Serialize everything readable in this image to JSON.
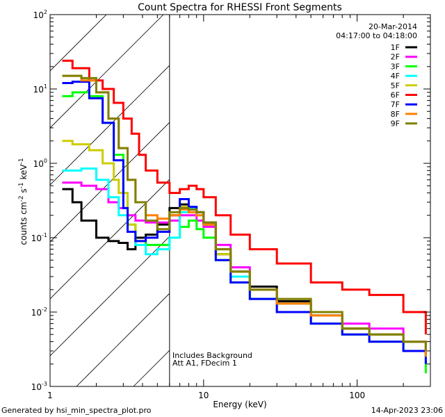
{
  "chart_data": {
    "type": "line",
    "title": "Count Spectra for RHESSI Front Segments",
    "xlabel": "Energy (keV)",
    "ylabel_parts": {
      "a": "counts cm",
      "b": "-2",
      "c": " s",
      "d": "-1",
      "e": " keV",
      "f": "-1"
    },
    "xscale": "log",
    "yscale": "log",
    "xlim": [
      1,
      300
    ],
    "ylim": [
      0.001,
      100
    ],
    "x_ticks": [
      {
        "v": 1,
        "label": "1"
      },
      {
        "v": 10,
        "label": "10"
      },
      {
        "v": 100,
        "label": "100"
      }
    ],
    "y_ticks": [
      {
        "v": 100,
        "base": "10",
        "exp": "2"
      },
      {
        "v": 10,
        "base": "10",
        "exp": "1"
      },
      {
        "v": 1,
        "base": "10",
        "exp": "0"
      },
      {
        "v": 0.1,
        "base": "10",
        "exp": "-1"
      },
      {
        "v": 0.01,
        "base": "10",
        "exp": "-2"
      },
      {
        "v": 0.001,
        "base": "10",
        "exp": "-3"
      }
    ],
    "hatched_region": [
      1,
      6
    ],
    "legend_placement": "top-right",
    "date": "20-Mar-2014",
    "time_range": "04:17:00 to 04:18:00",
    "annotations": [
      "Includes Background",
      "Att A1, FDecim 1"
    ],
    "series": [
      {
        "name": "1F",
        "color": "#000000",
        "x": [
          1.2,
          1.4,
          1.6,
          2.0,
          2.4,
          2.8,
          3.2,
          3.6,
          4.2,
          5,
          6,
          7,
          8,
          9,
          10,
          12,
          15,
          20,
          30,
          50,
          80,
          120,
          200,
          280
        ],
        "y": [
          0.45,
          0.3,
          0.17,
          0.1,
          0.09,
          0.085,
          0.07,
          0.1,
          0.11,
          0.15,
          0.25,
          0.28,
          0.24,
          0.22,
          0.16,
          0.06,
          0.035,
          0.022,
          0.014,
          0.009,
          0.006,
          0.005,
          0.004,
          0.0025
        ]
      },
      {
        "name": "2F",
        "color": "#ff00ff",
        "x": [
          1.2,
          1.6,
          2.0,
          2.4,
          2.8,
          3.2,
          3.6,
          4.2,
          5,
          6,
          7,
          8,
          9,
          10,
          12,
          15,
          20,
          30,
          50,
          80,
          120,
          200,
          280
        ],
        "y": [
          0.55,
          0.5,
          0.45,
          0.3,
          0.25,
          0.2,
          0.17,
          0.16,
          0.16,
          0.17,
          0.2,
          0.2,
          0.17,
          0.14,
          0.08,
          0.04,
          0.02,
          0.013,
          0.009,
          0.007,
          0.006,
          0.004,
          0.003
        ]
      },
      {
        "name": "3F",
        "color": "#00ff00",
        "x": [
          1.2,
          1.4,
          1.8,
          2.2,
          2.6,
          3.0,
          3.2,
          3.6,
          4.2,
          5,
          6,
          7,
          8,
          9,
          10,
          12,
          15,
          20,
          30,
          50,
          80,
          120,
          200,
          280
        ],
        "y": [
          8,
          9,
          8,
          3.5,
          1.3,
          0.4,
          0.15,
          0.09,
          0.08,
          0.08,
          0.1,
          0.14,
          0.17,
          0.13,
          0.1,
          0.05,
          0.025,
          0.015,
          0.01,
          0.007,
          0.005,
          0.004,
          0.003,
          0.0015
        ]
      },
      {
        "name": "4F",
        "color": "#00ffff",
        "x": [
          1.2,
          1.6,
          2.0,
          2.4,
          2.8,
          3.2,
          3.6,
          4.2,
          5,
          6,
          7,
          8,
          9,
          10,
          12,
          15,
          20,
          30,
          50,
          80,
          120,
          200,
          280
        ],
        "y": [
          0.8,
          0.85,
          0.6,
          0.35,
          0.2,
          0.12,
          0.08,
          0.06,
          0.07,
          0.1,
          0.22,
          0.25,
          0.2,
          0.15,
          0.07,
          0.03,
          0.02,
          0.013,
          0.009,
          0.006,
          0.005,
          0.004,
          0.002
        ]
      },
      {
        "name": "5F",
        "color": "#cccc00",
        "x": [
          1.2,
          1.4,
          1.8,
          2.2,
          2.6,
          2.8,
          3.2,
          3.6,
          4.2,
          5,
          6,
          7,
          8,
          9,
          10,
          12,
          15,
          20,
          30,
          50,
          80,
          120,
          200,
          280
        ],
        "y": [
          2,
          1.8,
          1.5,
          1,
          0.6,
          0.4,
          0.15,
          0.09,
          0.1,
          0.12,
          0.2,
          0.26,
          0.22,
          0.2,
          0.15,
          0.06,
          0.035,
          0.02,
          0.013,
          0.009,
          0.006,
          0.005,
          0.004,
          0.0025
        ]
      },
      {
        "name": "6F",
        "color": "#ff0000",
        "x": [
          1.2,
          1.4,
          1.8,
          2.2,
          2.6,
          3.0,
          3.4,
          3.8,
          4.2,
          5,
          6,
          7,
          8,
          9,
          10,
          12,
          15,
          20,
          30,
          50,
          80,
          120,
          200,
          280
        ],
        "y": [
          24,
          19,
          13,
          10,
          6.5,
          4,
          2.5,
          1.3,
          0.8,
          0.55,
          0.4,
          0.45,
          0.5,
          0.45,
          0.35,
          0.2,
          0.11,
          0.07,
          0.045,
          0.025,
          0.02,
          0.017,
          0.01,
          0.005
        ]
      },
      {
        "name": "7F",
        "color": "#0000ff",
        "x": [
          1.2,
          1.4,
          1.8,
          2.2,
          2.6,
          3.0,
          3.2,
          3.6,
          4.2,
          5,
          6,
          7,
          8,
          9,
          10,
          12,
          15,
          20,
          30,
          50,
          80,
          120,
          200,
          280
        ],
        "y": [
          12,
          12.5,
          7.5,
          3.5,
          1.1,
          0.25,
          0.12,
          0.09,
          0.1,
          0.12,
          0.2,
          0.33,
          0.26,
          0.22,
          0.15,
          0.05,
          0.025,
          0.015,
          0.01,
          0.007,
          0.005,
          0.004,
          0.003,
          0.002
        ]
      },
      {
        "name": "8F",
        "color": "#ff8000",
        "x": [
          1.2,
          1.6,
          2.0,
          2.4,
          2.8,
          3.2,
          3.6,
          4.2,
          5,
          6,
          7,
          8,
          9,
          10,
          12,
          15,
          20,
          30,
          50,
          80,
          120,
          200,
          280
        ],
        "y": [
          15,
          13,
          9,
          4,
          1.6,
          0.6,
          0.3,
          0.2,
          0.18,
          0.2,
          0.24,
          0.22,
          0.2,
          0.15,
          0.07,
          0.035,
          0.02,
          0.013,
          0.009,
          0.006,
          0.005,
          0.004,
          0.0025
        ]
      },
      {
        "name": "9F",
        "color": "#808000",
        "x": [
          1.2,
          1.6,
          2.0,
          2.4,
          2.8,
          3.2,
          3.6,
          4.2,
          5,
          6,
          7,
          8,
          9,
          10,
          12,
          15,
          20,
          30,
          50,
          80,
          120,
          200,
          280
        ],
        "y": [
          15,
          14,
          9,
          4,
          1.6,
          0.6,
          0.3,
          0.17,
          0.13,
          0.22,
          0.25,
          0.24,
          0.22,
          0.16,
          0.07,
          0.035,
          0.02,
          0.015,
          0.01,
          0.006,
          0.005,
          0.004,
          0.003
        ]
      }
    ]
  },
  "footer": {
    "generated_by": "Generated by hsi_min_spectra_plot.pro",
    "timestamp": "14-Apr-2023 23:06"
  }
}
